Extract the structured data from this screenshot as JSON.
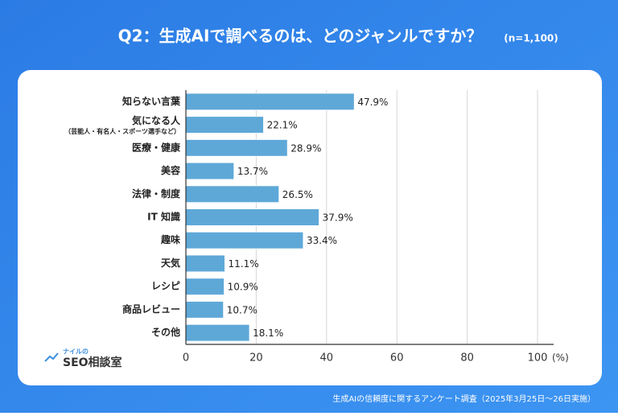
{
  "chart_data": {
    "type": "bar",
    "orientation": "horizontal",
    "title": "Q2：生成AIで調べるのは、どのジャンルですか？",
    "subtitle": "(n=1,100)",
    "categories": [
      "知らない言葉",
      "気になる人\n（芸能人・有名人・スポーツ選手など）",
      "医療・健康",
      "美容",
      "法律・制度",
      "IT 知識",
      "趣味",
      "天気",
      "レシピ",
      "商品レビュー",
      "その他"
    ],
    "values": [
      47.9,
      22.1,
      28.9,
      13.7,
      26.5,
      37.9,
      33.4,
      11.1,
      10.9,
      10.7,
      18.1
    ],
    "value_labels": [
      "47.9%",
      "22.1%",
      "28.9%",
      "13.7%",
      "26.5%",
      "37.9%",
      "33.4%",
      "11.1%",
      "10.9%",
      "10.7%",
      "18.1%"
    ],
    "color": "#5ea8d8",
    "xlim": [
      0,
      100
    ],
    "xticks": [
      0,
      20,
      40,
      60,
      80,
      100
    ],
    "x_label": "(%)",
    "grid": true,
    "source": "生成AIの信頼度に関するアンケート調査（2025年3月25日～26日実施）"
  },
  "logo": {
    "small": "ナイルの",
    "main": "SEO相談室"
  }
}
